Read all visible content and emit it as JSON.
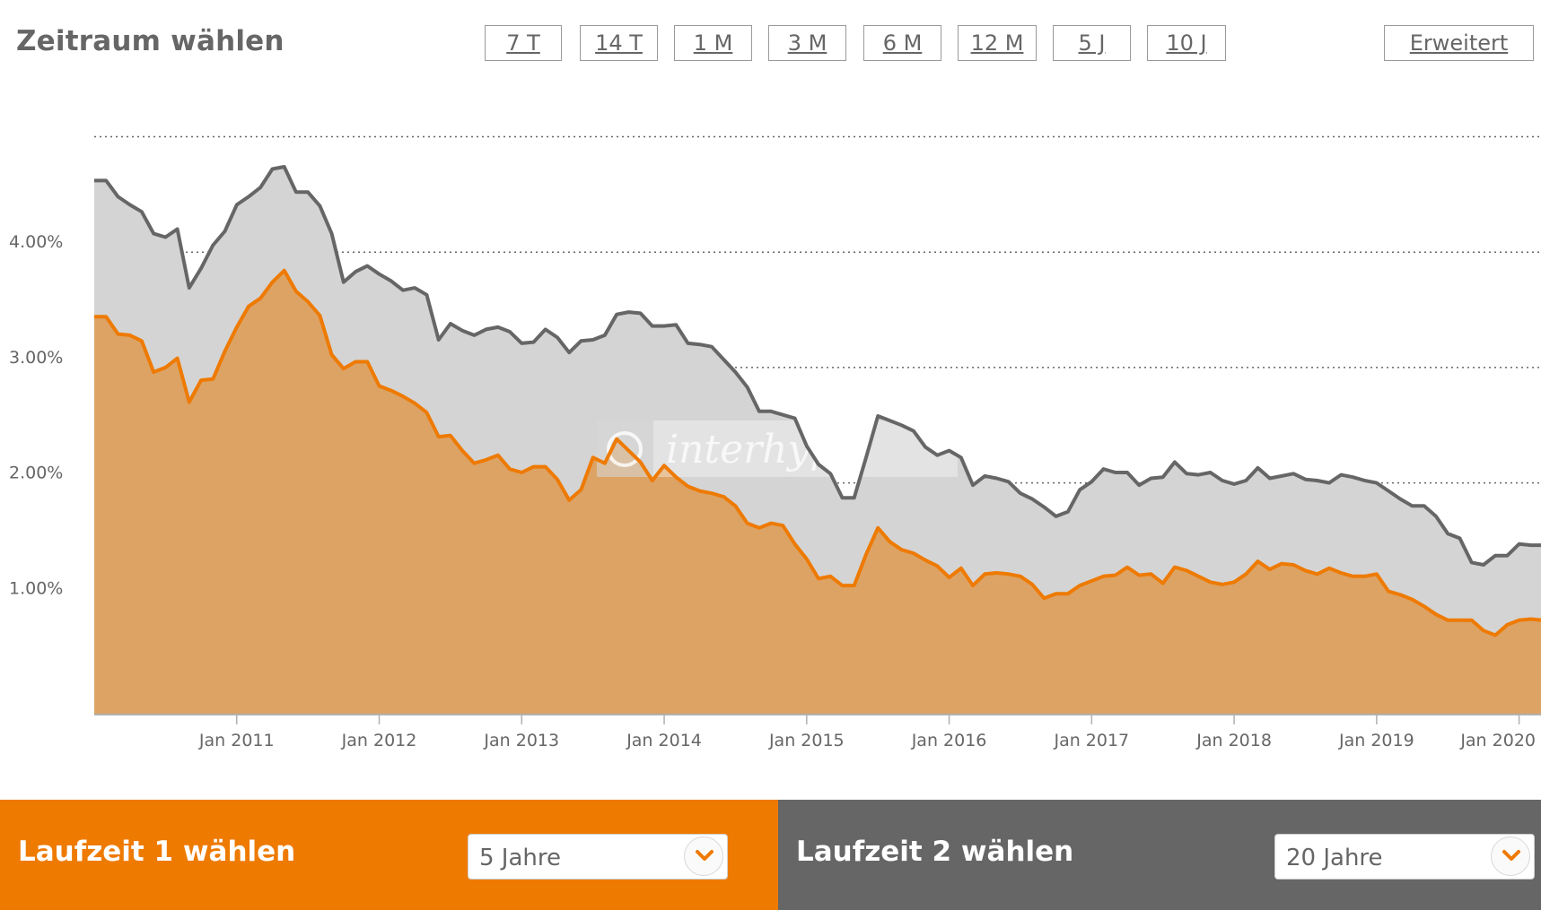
{
  "header": {
    "title": "Zeitraum wählen",
    "ranges": [
      "7 T",
      "14 T",
      "1 M",
      "3 M",
      "6 M",
      "12 M",
      "5 J",
      "10 J"
    ],
    "advanced": "Erweitert"
  },
  "watermark": "interhyp",
  "chart_data": {
    "type": "area",
    "x_start": "2010-01",
    "x_step": "1 month",
    "x_ticks": [
      "Jan 2011",
      "Jan 2012",
      "Jan 2013",
      "Jan 2014",
      "Jan 2015",
      "Jan 2016",
      "Jan 2017",
      "Jan 2018",
      "Jan 2019",
      "Jan 2020"
    ],
    "y_ticks": [
      "1.00%",
      "2.00%",
      "3.00%",
      "4.00%"
    ],
    "y_range": [
      0,
      5
    ],
    "grid": "horizontal dotted",
    "series": [
      {
        "color": "#666666",
        "fill": "#d4d4d4",
        "values": [
          4.62,
          4.62,
          4.48,
          4.41,
          4.35,
          4.16,
          4.13,
          4.2,
          3.69,
          3.86,
          4.06,
          4.18,
          4.41,
          4.48,
          4.56,
          4.72,
          4.74,
          4.52,
          4.52,
          4.4,
          4.16,
          3.74,
          3.83,
          3.88,
          3.81,
          3.75,
          3.67,
          3.69,
          3.63,
          3.24,
          3.38,
          3.32,
          3.28,
          3.33,
          3.35,
          3.31,
          3.21,
          3.22,
          3.33,
          3.26,
          3.13,
          3.23,
          3.24,
          3.28,
          3.46,
          3.48,
          3.47,
          3.36,
          3.36,
          3.37,
          3.21,
          3.2,
          3.18,
          3.07,
          2.96,
          2.83,
          2.62,
          2.62,
          2.59,
          2.56,
          2.32,
          2.16,
          2.08,
          1.87,
          1.87,
          2.22,
          2.58,
          2.54,
          2.5,
          2.45,
          2.31,
          2.24,
          2.28,
          2.22,
          1.98,
          2.06,
          2.04,
          2.01,
          1.91,
          1.86,
          1.79,
          1.71,
          1.75,
          1.94,
          2.01,
          2.12,
          2.09,
          2.09,
          1.98,
          2.04,
          2.05,
          2.18,
          2.08,
          2.07,
          2.09,
          2.02,
          1.99,
          2.02,
          2.13,
          2.04,
          2.06,
          2.08,
          2.03,
          2.02,
          2.0,
          2.07,
          2.05,
          2.02,
          2.0,
          1.93,
          1.86,
          1.8,
          1.8,
          1.71,
          1.56,
          1.52,
          1.31,
          1.29,
          1.37,
          1.37,
          1.47,
          1.46,
          1.46
        ]
      },
      {
        "color": "#ee7a00",
        "fill": "#dda365",
        "values": [
          3.44,
          3.44,
          3.29,
          3.28,
          3.23,
          2.96,
          3.0,
          3.08,
          2.7,
          2.89,
          2.9,
          3.14,
          3.35,
          3.53,
          3.6,
          3.74,
          3.84,
          3.66,
          3.57,
          3.45,
          3.11,
          2.99,
          3.05,
          3.05,
          2.84,
          2.8,
          2.75,
          2.69,
          2.61,
          2.4,
          2.41,
          2.28,
          2.17,
          2.2,
          2.24,
          2.12,
          2.09,
          2.14,
          2.14,
          2.03,
          1.85,
          1.94,
          2.22,
          2.17,
          2.38,
          2.28,
          2.18,
          2.02,
          2.15,
          2.05,
          1.97,
          1.93,
          1.91,
          1.88,
          1.8,
          1.65,
          1.61,
          1.65,
          1.63,
          1.47,
          1.34,
          1.17,
          1.19,
          1.11,
          1.11,
          1.38,
          1.61,
          1.49,
          1.42,
          1.39,
          1.33,
          1.28,
          1.18,
          1.26,
          1.11,
          1.21,
          1.22,
          1.21,
          1.19,
          1.12,
          1.0,
          1.04,
          1.04,
          1.11,
          1.15,
          1.19,
          1.2,
          1.27,
          1.2,
          1.21,
          1.13,
          1.27,
          1.24,
          1.19,
          1.14,
          1.12,
          1.14,
          1.21,
          1.32,
          1.25,
          1.3,
          1.29,
          1.24,
          1.21,
          1.26,
          1.22,
          1.19,
          1.19,
          1.21,
          1.06,
          1.03,
          0.99,
          0.93,
          0.86,
          0.81,
          0.81,
          0.81,
          0.72,
          0.68,
          0.77,
          0.81,
          0.82,
          0.81,
          0.81
        ]
      }
    ]
  },
  "footer": {
    "left": {
      "label": "Laufzeit 1 wählen",
      "value": "5 Jahre"
    },
    "right": {
      "label": "Laufzeit 2 wählen",
      "value": "20 Jahre"
    }
  }
}
